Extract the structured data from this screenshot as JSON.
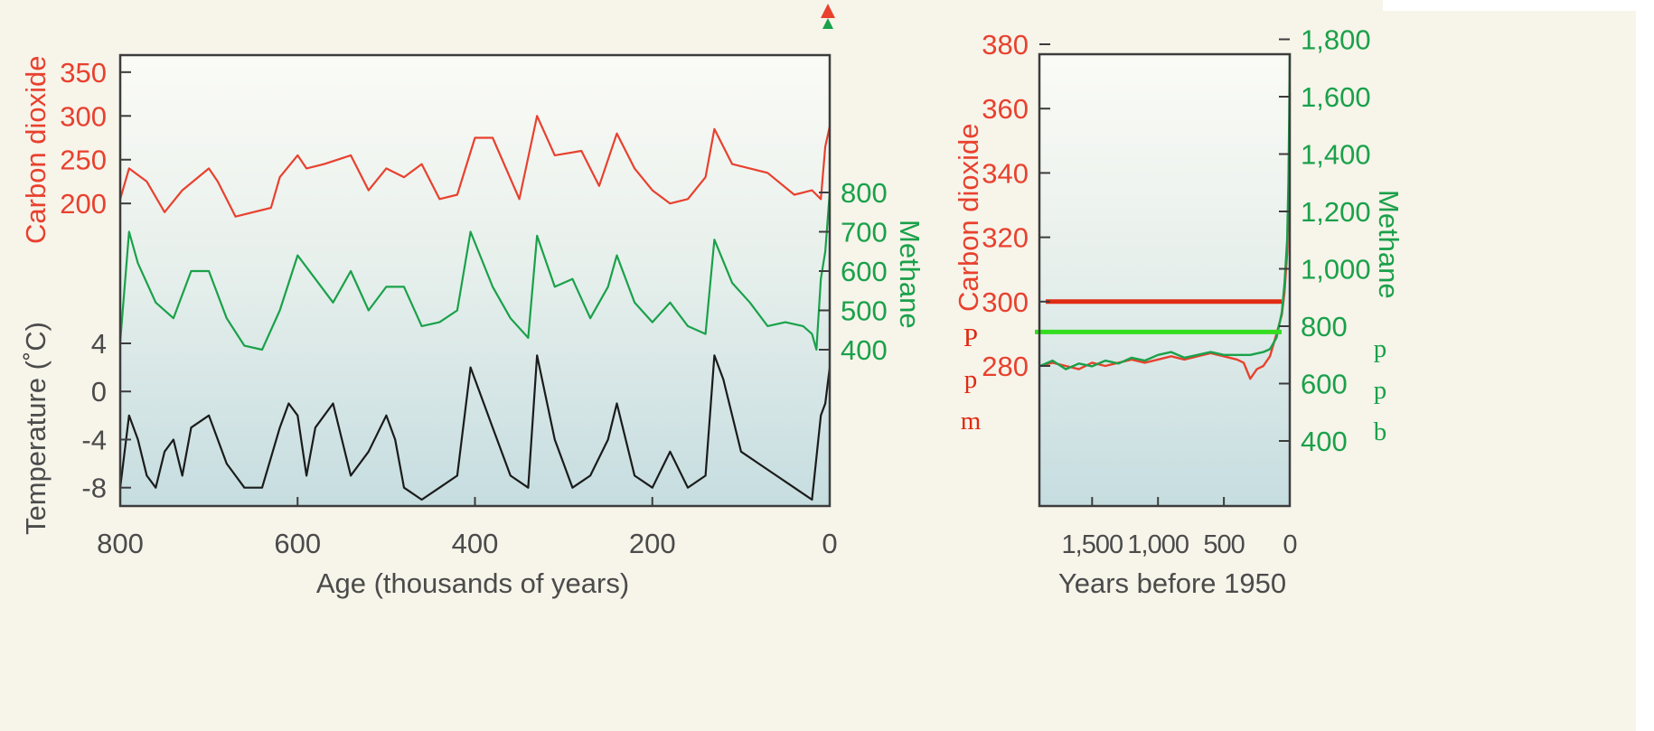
{
  "colors": {
    "co2": "#e8412e",
    "methane": "#1aa14a",
    "temperature": "#1b1b1b",
    "marker_red": "#e02a12",
    "marker_green": "#33dd1f",
    "axis_text": "#4b4b4b",
    "background": "#f7f4ea"
  },
  "chart_data": [
    {
      "type": "line",
      "xlabel": "Age (thousands of years)",
      "xlim": [
        800,
        0
      ],
      "x_ticks": [
        "800",
        "600",
        "400",
        "200",
        "0"
      ],
      "axes": {
        "co2": {
          "label": "Carbon dioxide",
          "ticks": [
            "200",
            "250",
            "300",
            "350"
          ],
          "ylim": [
            195,
            355
          ]
        },
        "methane": {
          "label": "Methane",
          "ticks": [
            "400",
            "500",
            "600",
            "700",
            "800"
          ],
          "ylim": [
            400,
            800
          ]
        },
        "temperature": {
          "label": "Temperature (˚C)",
          "ticks": [
            "4",
            "0",
            "-4",
            "-8"
          ],
          "ylim": [
            -9,
            4
          ]
        }
      },
      "series": [
        {
          "key": "co2",
          "x": [
            800,
            790,
            770,
            750,
            730,
            700,
            690,
            670,
            650,
            630,
            620,
            600,
            590,
            570,
            540,
            520,
            500,
            480,
            460,
            440,
            420,
            400,
            380,
            350,
            330,
            310,
            280,
            260,
            240,
            220,
            200,
            180,
            160,
            140,
            130,
            110,
            90,
            70,
            40,
            20,
            10,
            5,
            0
          ],
          "values": [
            205,
            240,
            225,
            190,
            215,
            240,
            225,
            185,
            190,
            195,
            230,
            255,
            240,
            245,
            255,
            215,
            240,
            230,
            245,
            205,
            210,
            275,
            275,
            205,
            300,
            255,
            260,
            220,
            280,
            240,
            215,
            200,
            205,
            230,
            285,
            245,
            240,
            235,
            210,
            215,
            205,
            265,
            288
          ]
        },
        {
          "key": "methane",
          "x": [
            800,
            790,
            780,
            760,
            740,
            720,
            700,
            680,
            660,
            640,
            620,
            600,
            580,
            560,
            540,
            520,
            500,
            480,
            460,
            440,
            420,
            405,
            380,
            360,
            340,
            330,
            310,
            290,
            270,
            250,
            240,
            220,
            200,
            180,
            160,
            140,
            130,
            110,
            90,
            70,
            50,
            30,
            20,
            15,
            10,
            5,
            0
          ],
          "values": [
            420,
            700,
            620,
            520,
            480,
            600,
            600,
            480,
            410,
            400,
            500,
            640,
            580,
            520,
            600,
            500,
            560,
            560,
            460,
            470,
            500,
            700,
            560,
            480,
            430,
            690,
            560,
            580,
            480,
            560,
            640,
            520,
            470,
            520,
            460,
            440,
            680,
            570,
            520,
            460,
            470,
            460,
            440,
            400,
            580,
            650,
            800
          ]
        },
        {
          "key": "temperature",
          "x": [
            800,
            790,
            780,
            770,
            760,
            750,
            740,
            730,
            720,
            700,
            680,
            670,
            660,
            640,
            620,
            610,
            600,
            590,
            580,
            560,
            550,
            540,
            520,
            500,
            490,
            480,
            460,
            440,
            420,
            405,
            400,
            380,
            360,
            340,
            330,
            310,
            290,
            270,
            250,
            240,
            220,
            200,
            180,
            160,
            140,
            130,
            120,
            100,
            80,
            60,
            40,
            20,
            10,
            5,
            0
          ],
          "values": [
            -8,
            -2,
            -4,
            -7,
            -8,
            -5,
            -4,
            -7,
            -3,
            -2,
            -6,
            -7,
            -8,
            -8,
            -3,
            -1,
            -2,
            -7,
            -3,
            -1,
            -4,
            -7,
            -5,
            -2,
            -4,
            -8,
            -9,
            -8,
            -7,
            2,
            1,
            -3,
            -7,
            -8,
            3,
            -4,
            -8,
            -7,
            -4,
            -1,
            -7,
            -8,
            -5,
            -8,
            -7,
            3,
            1,
            -5,
            -6,
            -7,
            -8,
            -9,
            -2,
            -1,
            2
          ]
        }
      ]
    },
    {
      "type": "line",
      "xlabel": "Years before 1950",
      "xlim": [
        1900,
        0
      ],
      "x_ticks": [
        "1,500",
        "1,000",
        "500",
        "0"
      ],
      "axes": {
        "co2": {
          "label": "Carbon dioxide",
          "ticks": [
            "280",
            "300",
            "320",
            "340",
            "360",
            "380"
          ],
          "ylim": [
            260,
            385
          ],
          "unit_label": [
            "P",
            "p",
            "m"
          ]
        },
        "methane": {
          "label": "Methane",
          "ticks": [
            "400",
            "600",
            "800",
            "1,000",
            "1,200",
            "1,400",
            "1,600",
            "1,800"
          ],
          "ylim": [
            200,
            1800
          ],
          "unit_label": [
            "p",
            "p",
            "b"
          ]
        }
      },
      "series": [
        {
          "key": "co2",
          "x": [
            1900,
            1800,
            1700,
            1600,
            1500,
            1400,
            1300,
            1200,
            1100,
            1000,
            900,
            800,
            700,
            600,
            500,
            400,
            350,
            300,
            250,
            200,
            150,
            100,
            60,
            40,
            20,
            10,
            0
          ],
          "values": [
            280,
            281,
            280,
            279,
            281,
            280,
            281,
            282,
            281,
            282,
            283,
            282,
            283,
            284,
            283,
            282,
            281,
            276,
            279,
            280,
            283,
            290,
            296,
            303,
            315,
            330,
            365
          ]
        },
        {
          "key": "methane",
          "x": [
            1900,
            1800,
            1700,
            1600,
            1500,
            1400,
            1300,
            1200,
            1100,
            1000,
            900,
            800,
            700,
            600,
            500,
            400,
            300,
            200,
            150,
            100,
            60,
            40,
            20,
            10,
            5,
            0
          ],
          "values": [
            660,
            680,
            650,
            670,
            660,
            680,
            670,
            690,
            680,
            700,
            710,
            690,
            700,
            710,
            700,
            700,
            700,
            710,
            720,
            760,
            850,
            950,
            1100,
            1300,
            1500,
            1750
          ]
        }
      ],
      "annotations": [
        {
          "type": "hline",
          "series": "co2",
          "value": 300
        },
        {
          "type": "hline",
          "series": "methane",
          "value": 780
        }
      ]
    }
  ]
}
